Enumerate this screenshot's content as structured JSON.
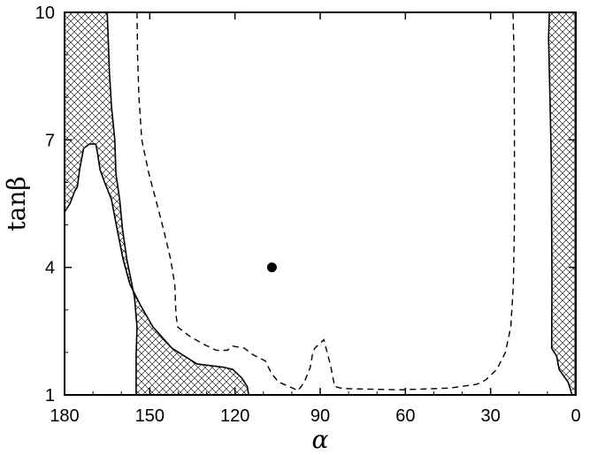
{
  "chart_data": {
    "type": "contour",
    "title": "",
    "xlabel": "α",
    "ylabel": "tanβ",
    "xlim": [
      180,
      0
    ],
    "ylim": [
      1,
      10
    ],
    "x_reversed": true,
    "xticks": [
      180,
      150,
      120,
      90,
      60,
      30,
      0
    ],
    "xtick_labels": [
      "180",
      "150",
      "120",
      "90",
      "60",
      "30",
      "0"
    ],
    "yticks": [
      1,
      4,
      7,
      10
    ],
    "ytick_labels": [
      "1",
      "4",
      "7",
      "10"
    ],
    "grid": false,
    "legend": "none",
    "point": {
      "alpha": 107,
      "tanbeta": 4.0
    },
    "hatched_regions": [
      {
        "name": "hatched-region-upper-left",
        "boundary": [
          [
            180,
            10
          ],
          [
            165,
            10
          ],
          [
            164.6,
            9.3
          ],
          [
            164.2,
            8.6
          ],
          [
            163.5,
            7.8
          ],
          [
            162.3,
            7.0
          ],
          [
            161.9,
            6.2
          ],
          [
            160.6,
            5.6
          ],
          [
            159.6,
            4.9
          ],
          [
            158.1,
            4.2
          ],
          [
            156.9,
            3.8
          ],
          [
            155.4,
            3.3
          ],
          [
            154.5,
            2.6
          ],
          [
            154.8,
            1.9
          ],
          [
            154.8,
            1.0
          ],
          [
            115.2,
            1.0
          ],
          [
            115.7,
            1.2
          ],
          [
            117.6,
            1.4
          ],
          [
            120.8,
            1.6
          ],
          [
            124.0,
            1.65
          ],
          [
            133.4,
            1.73
          ],
          [
            142.2,
            2.1
          ],
          [
            148.9,
            2.6
          ],
          [
            153.2,
            3.1
          ],
          [
            157.0,
            3.6
          ],
          [
            159.4,
            4.2
          ],
          [
            161.5,
            4.9
          ],
          [
            163.5,
            5.6
          ],
          [
            165.9,
            6.0
          ],
          [
            167.5,
            6.3
          ],
          [
            168.4,
            6.7
          ],
          [
            169.0,
            6.9
          ],
          [
            171.3,
            6.9
          ],
          [
            173.3,
            6.8
          ],
          [
            174.7,
            6.3
          ],
          [
            175.5,
            5.9
          ],
          [
            176.4,
            5.8
          ],
          [
            178.1,
            5.5
          ],
          [
            180,
            5.3
          ]
        ]
      },
      {
        "name": "hatched-region-right",
        "boundary": [
          [
            0.2,
            10
          ],
          [
            9.3,
            10
          ],
          [
            9.6,
            9.4
          ],
          [
            9.3,
            8.6
          ],
          [
            8.9,
            7.4
          ],
          [
            8.6,
            6.3
          ],
          [
            8.5,
            4.9
          ],
          [
            8.4,
            3.6
          ],
          [
            8.5,
            2.1
          ],
          [
            7.1,
            1.95
          ],
          [
            6.7,
            1.9
          ],
          [
            5.9,
            1.6
          ],
          [
            2.7,
            1.3
          ],
          [
            1.3,
            1.0
          ],
          [
            0.2,
            1.0
          ]
        ]
      }
    ],
    "dashed_contour": [
      [
        154.5,
        10
      ],
      [
        154.3,
        9.0
      ],
      [
        153.8,
        8.0
      ],
      [
        152.8,
        7.0
      ],
      [
        150.3,
        6.2
      ],
      [
        147.1,
        5.4
      ],
      [
        144.8,
        4.8
      ],
      [
        142.7,
        4.2
      ],
      [
        141.2,
        3.6
      ],
      [
        140.8,
        2.9
      ],
      [
        140.2,
        2.6
      ],
      [
        136.4,
        2.4
      ],
      [
        131.3,
        2.2
      ],
      [
        126.6,
        2.05
      ],
      [
        122.7,
        2.05
      ],
      [
        120.8,
        2.15
      ],
      [
        116.7,
        2.1
      ],
      [
        113.8,
        1.95
      ],
      [
        109.3,
        1.8
      ],
      [
        107.1,
        1.5
      ],
      [
        104.6,
        1.3
      ],
      [
        100.9,
        1.2
      ],
      [
        97.8,
        1.1
      ],
      [
        95.6,
        1.3
      ],
      [
        93.5,
        1.65
      ],
      [
        92.7,
        1.95
      ],
      [
        91.9,
        2.1
      ],
      [
        88.7,
        2.3
      ],
      [
        86.4,
        1.7
      ],
      [
        84.9,
        1.2
      ],
      [
        82.1,
        1.15
      ],
      [
        75.0,
        1.14
      ],
      [
        61.8,
        1.12
      ],
      [
        44.5,
        1.16
      ],
      [
        34.9,
        1.25
      ],
      [
        31.8,
        1.35
      ],
      [
        27.8,
        1.6
      ],
      [
        24.8,
        2.0
      ],
      [
        22.9,
        2.6
      ],
      [
        22.0,
        3.6
      ],
      [
        21.6,
        5.0
      ],
      [
        21.6,
        7.0
      ],
      [
        21.7,
        8.9
      ],
      [
        22.1,
        10
      ]
    ]
  }
}
